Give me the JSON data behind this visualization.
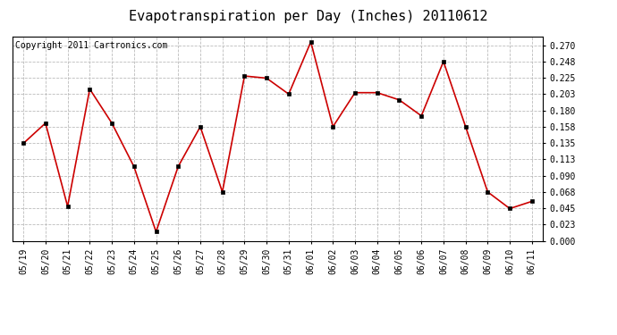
{
  "title": "Evapotranspiration per Day (Inches) 20110612",
  "copyright": "Copyright 2011 Cartronics.com",
  "dates": [
    "05/19",
    "05/20",
    "05/21",
    "05/22",
    "05/23",
    "05/24",
    "05/25",
    "05/26",
    "05/27",
    "05/28",
    "05/29",
    "05/30",
    "05/31",
    "06/01",
    "06/02",
    "06/03",
    "06/04",
    "06/05",
    "06/06",
    "06/07",
    "06/08",
    "06/09",
    "06/10",
    "06/11"
  ],
  "values": [
    0.135,
    0.163,
    0.048,
    0.21,
    0.163,
    0.103,
    0.013,
    0.103,
    0.158,
    0.068,
    0.228,
    0.225,
    0.203,
    0.275,
    0.158,
    0.205,
    0.205,
    0.195,
    0.173,
    0.248,
    0.158,
    0.068,
    0.045,
    0.055
  ],
  "line_color": "#cc0000",
  "marker_color": "#000000",
  "bg_color": "#ffffff",
  "plot_bg_color": "#ffffff",
  "grid_color": "#bbbbbb",
  "yticks": [
    0.0,
    0.023,
    0.045,
    0.068,
    0.09,
    0.113,
    0.135,
    0.158,
    0.18,
    0.203,
    0.225,
    0.248,
    0.27
  ],
  "ylim": [
    0.0,
    0.282
  ],
  "title_fontsize": 11,
  "copyright_fontsize": 7,
  "tick_fontsize": 7
}
